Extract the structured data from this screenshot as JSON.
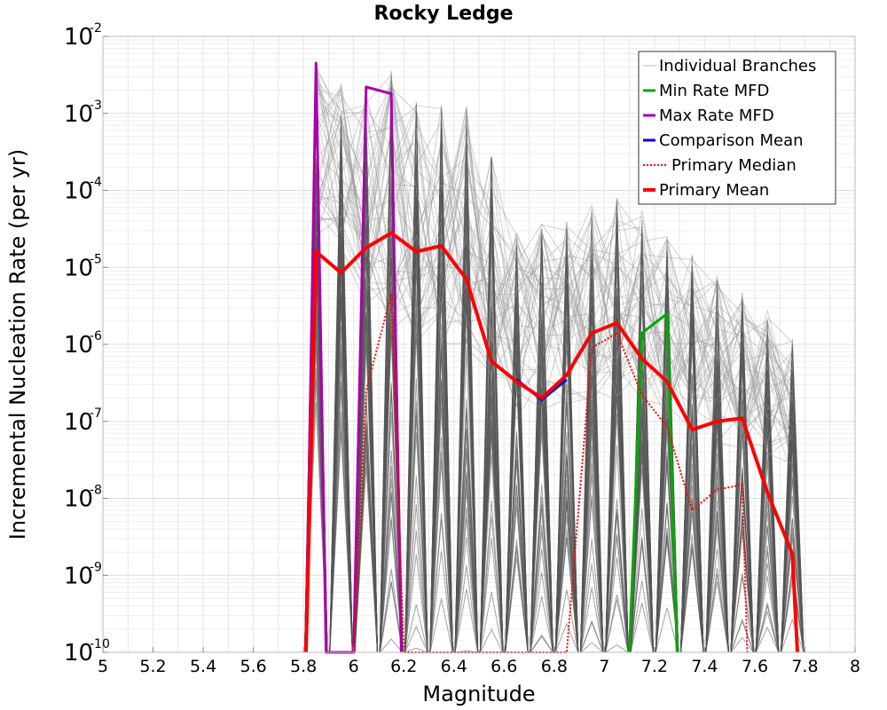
{
  "chart_data": {
    "type": "line",
    "title": "Rocky Ledge",
    "xlabel": "Magnitude",
    "ylabel": "Incremental Nucleation Rate (per yr)",
    "xlim": [
      5,
      8
    ],
    "ylim": [
      1e-10,
      0.01
    ],
    "yscale": "log",
    "grid": true,
    "legend_position": "top-right",
    "x_ticks": [
      "5",
      "5.2",
      "5.4",
      "5.6",
      "5.8",
      "6",
      "6.2",
      "6.4",
      "6.6",
      "6.8",
      "7",
      "7.2",
      "7.4",
      "7.6",
      "7.8",
      "8"
    ],
    "y_ticks": [
      {
        "base": "10",
        "exp": "-10"
      },
      {
        "base": "10",
        "exp": "-9"
      },
      {
        "base": "10",
        "exp": "-8"
      },
      {
        "base": "10",
        "exp": "-7"
      },
      {
        "base": "10",
        "exp": "-6"
      },
      {
        "base": "10",
        "exp": "-5"
      },
      {
        "base": "10",
        "exp": "-4"
      },
      {
        "base": "10",
        "exp": "-3"
      },
      {
        "base": "10",
        "exp": "-2"
      }
    ],
    "series": [
      {
        "name": "Individual Branches",
        "color": "#555555",
        "style": "thin-band",
        "x": [
          5.85,
          5.95,
          6.05,
          6.15,
          6.25,
          6.35,
          6.45,
          6.55,
          6.65,
          6.75,
          6.85,
          6.95,
          7.05,
          7.15,
          7.25,
          7.35,
          7.45,
          7.55,
          7.65,
          7.75
        ],
        "y_low": [
          3e-08,
          3e-08,
          1e-09,
          1e-10,
          1e-10,
          1e-10,
          1e-10,
          1e-10,
          1e-10,
          1e-10,
          1e-10,
          1e-10,
          1e-10,
          1e-10,
          1e-10,
          1e-10,
          1e-10,
          1e-10,
          1e-10,
          1e-10
        ],
        "y_high": [
          0.0045,
          0.003,
          0.002,
          0.004,
          0.0015,
          0.0013,
          0.0013,
          0.0003,
          3e-05,
          4e-05,
          5e-05,
          7e-05,
          9e-05,
          6e-05,
          3e-05,
          1.5e-05,
          8e-06,
          5e-06,
          3e-06,
          1.2e-06
        ]
      },
      {
        "name": "Min Rate MFD",
        "color": "#00aa00",
        "style": "solid",
        "x": [
          7.1,
          7.15,
          7.25,
          7.29
        ],
        "y": [
          1e-10,
          1.4e-06,
          2.5e-06,
          1e-10
        ]
      },
      {
        "name": "Max Rate MFD",
        "color": "#aa00aa",
        "style": "solid",
        "x": [
          5.81,
          5.85,
          5.89,
          6.0,
          6.05,
          6.15,
          6.19
        ],
        "y": [
          1e-10,
          0.0045,
          1e-10,
          1e-10,
          0.0022,
          0.0018,
          1e-10
        ]
      },
      {
        "name": "Comparison Mean",
        "color": "#0000dd",
        "style": "solid",
        "x": [
          6.65,
          6.75,
          6.85
        ],
        "y": [
          3.5e-07,
          1.9e-07,
          3.5e-07
        ]
      },
      {
        "name": "Primary Median",
        "color": "#ff0000",
        "style": "dotted",
        "x": [
          6.0,
          6.05,
          6.15,
          6.2,
          6.85,
          6.95,
          7.05,
          7.15,
          7.25,
          7.35,
          7.45,
          7.55,
          7.57
        ],
        "y": [
          1e-10,
          2.5e-07,
          4.5e-06,
          1e-10,
          1e-10,
          9e-07,
          1.4e-06,
          2.2e-07,
          8.5e-08,
          7e-09,
          1.3e-08,
          1.5e-08,
          1e-10
        ]
      },
      {
        "name": "Primary Mean",
        "color": "#ff0000",
        "style": "solid-thick",
        "x": [
          5.81,
          5.85,
          5.95,
          6.05,
          6.15,
          6.25,
          6.35,
          6.45,
          6.55,
          6.65,
          6.75,
          6.85,
          6.95,
          7.05,
          7.15,
          7.25,
          7.35,
          7.45,
          7.55,
          7.65,
          7.75,
          7.77
        ],
        "y": [
          1e-10,
          1.6e-05,
          8.5e-06,
          1.8e-05,
          2.8e-05,
          1.6e-05,
          1.9e-05,
          7e-06,
          6e-07,
          3.3e-07,
          2e-07,
          4e-07,
          1.4e-06,
          1.9e-06,
          6.5e-07,
          3.3e-07,
          7.8e-08,
          1e-07,
          1.1e-07,
          1.2e-08,
          1.9e-09,
          1e-10
        ]
      }
    ]
  }
}
